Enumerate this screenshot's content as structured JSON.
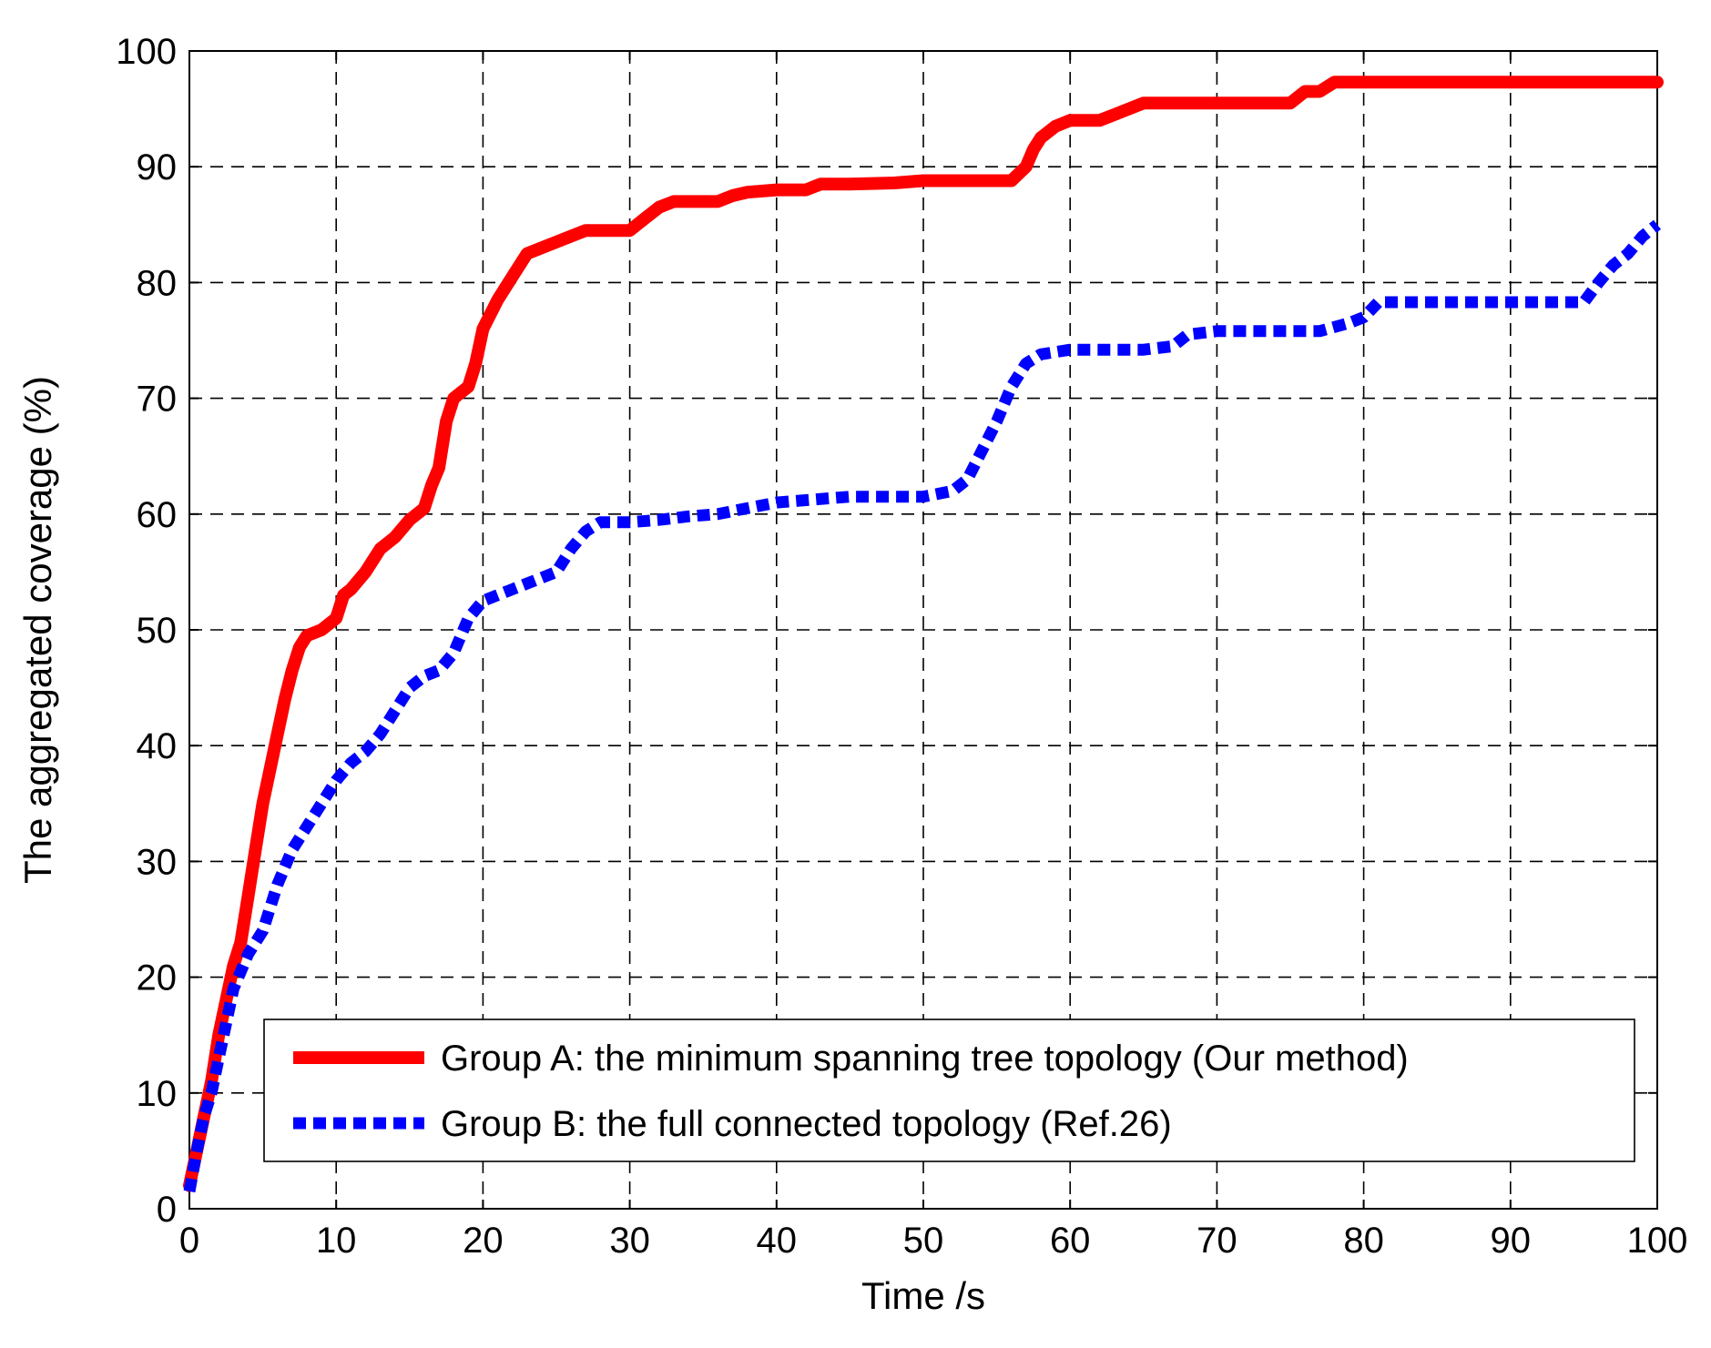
{
  "chart_data": {
    "type": "line",
    "title": "",
    "xlabel": "Time /s",
    "ylabel": "The aggregated coverage (%)",
    "xlim": [
      0,
      100
    ],
    "ylim": [
      0,
      100
    ],
    "xticks": [
      "0",
      "10",
      "20",
      "30",
      "40",
      "50",
      "60",
      "70",
      "80",
      "90",
      "100"
    ],
    "yticks": [
      "0",
      "10",
      "20",
      "30",
      "40",
      "50",
      "60",
      "70",
      "80",
      "90",
      "100"
    ],
    "grid": true,
    "legend_position": "bottom-right",
    "series": [
      {
        "name": "Group A: the minimum spanning tree topology (Our method)",
        "color": "#ff0000",
        "style": "solid",
        "x": [
          0,
          0.5,
          1,
          1.5,
          2,
          2.5,
          3,
          3.5,
          4,
          4.5,
          5,
          5.5,
          6,
          6.5,
          7,
          7.5,
          8,
          9,
          10,
          10.5,
          11,
          12,
          13,
          14,
          15,
          16,
          16.5,
          17,
          17.5,
          18,
          18.5,
          19,
          19.5,
          20,
          21,
          22,
          23,
          24,
          25,
          26,
          27,
          28,
          30,
          31,
          32,
          33,
          34,
          36,
          37,
          38,
          40,
          42,
          43,
          45,
          48,
          50,
          52,
          56,
          57,
          57.5,
          58,
          59,
          60,
          62,
          63,
          64,
          65,
          68,
          70,
          72,
          75,
          76,
          77,
          78,
          80,
          90,
          100
        ],
        "y": [
          2,
          5,
          8,
          11,
          15,
          18,
          21,
          23,
          27,
          31,
          35,
          38,
          41,
          44,
          46.5,
          48.5,
          49.5,
          50,
          51,
          53,
          53.5,
          55,
          57,
          58,
          59.5,
          60.5,
          62.5,
          64,
          68,
          70,
          70.5,
          71,
          73,
          76,
          78.5,
          80.5,
          82.5,
          83,
          83.5,
          84,
          84.5,
          84.5,
          84.5,
          85.5,
          86.5,
          87,
          87,
          87,
          87.5,
          87.8,
          88,
          88,
          88.5,
          88.5,
          88.6,
          88.8,
          88.8,
          88.8,
          90,
          91.5,
          92.5,
          93.5,
          94,
          94,
          94.5,
          95,
          95.5,
          95.5,
          95.5,
          95.5,
          95.5,
          96.5,
          96.5,
          97.3,
          97.3,
          97.3,
          97.3
        ]
      },
      {
        "name": "Group B: the full connected topology (Ref.26)",
        "color": "#0000ff",
        "style": "dotted",
        "x": [
          0,
          0.5,
          1,
          1.5,
          2,
          2.5,
          3,
          4,
          5,
          6,
          7,
          8,
          9,
          10,
          11,
          12,
          13,
          14,
          15,
          16,
          17,
          18,
          19,
          20,
          21,
          22,
          23,
          24,
          25,
          26,
          27,
          28,
          30,
          32,
          34,
          36,
          38,
          40,
          42,
          45,
          48,
          50,
          52,
          53,
          54,
          55,
          56,
          57,
          58,
          60,
          62,
          65,
          67,
          68,
          70,
          72,
          75,
          77,
          79,
          80,
          81,
          85,
          90,
          95,
          96,
          97,
          98,
          99,
          100
        ],
        "y": [
          1.5,
          5,
          8,
          10,
          13,
          16,
          19,
          22,
          24,
          28,
          31,
          33,
          35,
          37,
          38.5,
          39.5,
          41,
          43,
          45,
          46,
          46.5,
          48,
          51,
          52.5,
          53,
          53.5,
          54,
          54.5,
          55,
          57,
          58.5,
          59.3,
          59.3,
          59.5,
          59.8,
          60,
          60.5,
          61,
          61.2,
          61.5,
          61.5,
          61.5,
          62,
          63,
          65.5,
          68,
          71,
          73,
          73.8,
          74.2,
          74.2,
          74.2,
          74.5,
          75.5,
          75.8,
          75.8,
          75.8,
          75.8,
          76.5,
          77,
          78.3,
          78.3,
          78.3,
          78.3,
          80,
          81.5,
          82.5,
          84,
          85
        ]
      }
    ]
  }
}
